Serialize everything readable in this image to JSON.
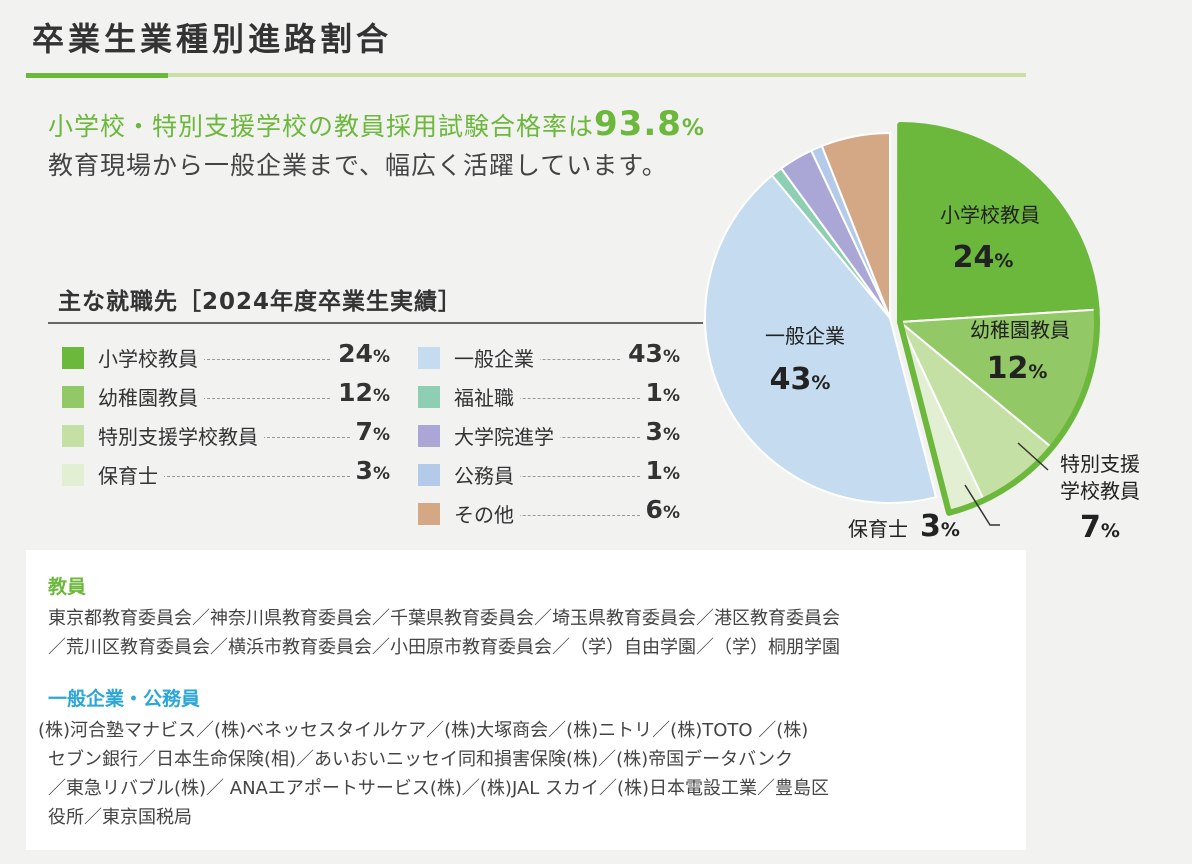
{
  "title": "卒業生業種別進路割合",
  "lead": {
    "prefix": "小学校・特別支援学校の教員採用試験合格率は",
    "rate": "93.8",
    "unit": "%",
    "line2": "教育現場から一般企業まで、幅広く活躍しています。"
  },
  "legend": {
    "title": "主な就職先［2024年度卒業生実績］",
    "left": [
      {
        "label": "小学校教員",
        "value": "24",
        "color": "#6cb83c"
      },
      {
        "label": "幼稚園教員",
        "value": "12",
        "color": "#92c865"
      },
      {
        "label": "特別支援学校教員",
        "value": "7",
        "color": "#c4e0a4"
      },
      {
        "label": "保育士",
        "value": "3",
        "color": "#e2efd2"
      }
    ],
    "right": [
      {
        "label": "一般企業",
        "value": "43",
        "color": "#c5dcf0"
      },
      {
        "label": "福祉職",
        "value": "1",
        "color": "#8ecfb3"
      },
      {
        "label": "大学院進学",
        "value": "3",
        "color": "#aaa7d6"
      },
      {
        "label": "公務員",
        "value": "1",
        "color": "#b3cbe8"
      },
      {
        "label": "その他",
        "value": "6",
        "color": "#d4a785"
      }
    ],
    "unit": "%"
  },
  "chart_data": {
    "type": "pie",
    "slices": [
      {
        "label": "小学校教員",
        "value": 24,
        "color": "#6cb83c"
      },
      {
        "label": "幼稚園教員",
        "value": 12,
        "color": "#92c865"
      },
      {
        "label": "特別支援学校教員",
        "value": 7,
        "color": "#c4e0a4"
      },
      {
        "label": "保育士",
        "value": 3,
        "color": "#e2efd2"
      },
      {
        "label": "一般企業",
        "value": 43,
        "color": "#c5dcf0"
      },
      {
        "label": "福祉職",
        "value": 1,
        "color": "#8ecfb3"
      },
      {
        "label": "大学院進学",
        "value": 3,
        "color": "#aaa7d6"
      },
      {
        "label": "公務員",
        "value": 1,
        "color": "#b3cbe8"
      },
      {
        "label": "その他",
        "value": 6,
        "color": "#d4a785"
      }
    ],
    "highlight_color": "#6cb83c",
    "labels": {
      "s1_name": "小学校教員",
      "s1_val": "24",
      "s2_name": "幼稚園教員",
      "s2_val": "12",
      "s3_name1": "特別支援",
      "s3_name2": "学校教員",
      "s3_val": "7",
      "s4_name": "保育士",
      "s4_val": "3",
      "s5_name": "一般企業",
      "s5_val": "43",
      "unit": "%"
    }
  },
  "destinations": {
    "teachers_heading": "教員",
    "teachers_color": "#6cb83c",
    "teachers_lines": [
      "東京都教育委員会／神奈川県教育委員会／千葉県教育委員会／埼玉県教育委員会／港区教育委員会",
      "／荒川区教育委員会／横浜市教育委員会／小田原市教育委員会／（学）自由学園／（学）桐朋学園"
    ],
    "corp_heading": "一般企業・公務員",
    "corp_color": "#2aa6d8",
    "corp_lines": [
      "(株)河合塾マナビス／(株)ベネッセスタイルケア／(株)大塚商会／(株)ニトリ／(株)TOTO ／(株)",
      "セブン銀行／日本生命保険(相)／あいおいニッセイ同和損害保険(株)／(株)帝国データバンク",
      "／東急リバブル(株)／ ANAエアポートサービス(株)／(株)JAL スカイ／(株)日本電設工業／豊島区",
      "役所／東京国税局"
    ]
  }
}
